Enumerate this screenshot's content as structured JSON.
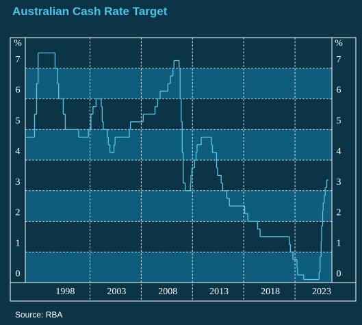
{
  "chart_data": {
    "type": "step",
    "title": "Australian Cash Rate Target",
    "source": "Source: RBA",
    "y_unit": "%",
    "color": "#5cc8e8",
    "band_color": "#0e5d7c",
    "bands": true,
    "grid": true,
    "x": [
      1993.7,
      1994.6,
      1994.8,
      1994.95,
      1996.6,
      1996.85,
      1996.95,
      1997.4,
      1997.6,
      1998.9,
      1999.85,
      2000.1,
      2000.3,
      2000.6,
      2001.1,
      2001.2,
      2001.3,
      2001.7,
      2001.8,
      2001.95,
      2002.35,
      2002.45,
      2003.85,
      2003.95,
      2005.2,
      2006.35,
      2006.6,
      2006.85,
      2007.6,
      2007.85,
      2008.1,
      2008.2,
      2008.7,
      2008.8,
      2008.9,
      2009.0,
      2009.1,
      2009.3,
      2009.8,
      2009.85,
      2009.95,
      2010.2,
      2010.35,
      2010.45,
      2010.85,
      2011.85,
      2011.95,
      2012.35,
      2012.45,
      2012.8,
      2012.95,
      2013.35,
      2013.6,
      2015.1,
      2015.4,
      2016.35,
      2016.6,
      2019.45,
      2019.55,
      2019.8,
      2020.2,
      2020.25,
      2020.85,
      2022.35,
      2022.45,
      2022.55,
      2022.6,
      2022.7,
      2022.75,
      2022.85,
      2022.95,
      2023.1,
      2023.25
    ],
    "values": [
      4.75,
      5.5,
      6.5,
      7.5,
      7.0,
      6.5,
      6.0,
      5.5,
      5.0,
      4.75,
      5.0,
      5.5,
      5.75,
      6.0,
      5.75,
      5.25,
      5.0,
      4.75,
      4.5,
      4.25,
      4.5,
      4.75,
      5.0,
      5.25,
      5.5,
      5.75,
      6.0,
      6.25,
      6.5,
      6.75,
      7.0,
      7.25,
      7.0,
      6.0,
      5.25,
      4.25,
      3.25,
      3.0,
      3.25,
      3.5,
      3.75,
      4.0,
      4.25,
      4.5,
      4.75,
      4.5,
      4.25,
      3.75,
      3.5,
      3.25,
      3.0,
      2.75,
      2.5,
      2.25,
      2.0,
      1.75,
      1.5,
      1.25,
      1.0,
      0.75,
      0.5,
      0.25,
      0.1,
      0.35,
      0.85,
      1.35,
      1.85,
      2.35,
      2.6,
      2.85,
      3.1,
      3.35,
      3.35
    ],
    "xlim": [
      1993.7,
      2023.6
    ],
    "xticks": [
      1998,
      2003,
      2008,
      2013,
      2018,
      2023
    ],
    "xgrid": [
      2000,
      2005,
      2010,
      2015,
      2020
    ],
    "ylim": [
      0,
      8
    ],
    "yticks": [
      0,
      1,
      2,
      3,
      4,
      5,
      6,
      7
    ]
  }
}
